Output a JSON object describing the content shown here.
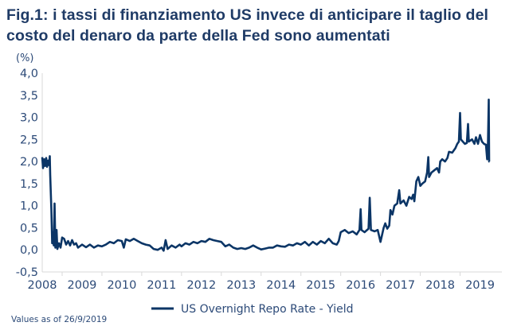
{
  "chart_data": {
    "type": "line",
    "title": "Fig.1: i tassi di finanziamento US invece di anticipare il taglio del costo del denaro da parte della Fed sono aumentati",
    "ylabel": "(%)",
    "xlabel": "",
    "ylim": [
      -0.5,
      4.0
    ],
    "xlim": [
      2008.5,
      2020.05
    ],
    "yticks": [
      "4,0",
      "3,5",
      "3,0",
      "2,5",
      "2,0",
      "1,5",
      "1,0",
      "0,5",
      "0,0",
      "-0,5"
    ],
    "ytick_values": [
      4.0,
      3.5,
      3.0,
      2.5,
      2.0,
      1.5,
      1.0,
      0.5,
      0.0,
      -0.5
    ],
    "xticks": [
      "2008",
      "2009",
      "2010",
      "2011",
      "2012",
      "2013",
      "2014",
      "2015",
      "2016",
      "2017",
      "2018",
      "2019"
    ],
    "grid": false,
    "legend_position": "bottom",
    "color": "#0b3566",
    "series": [
      {
        "name": "US Overnight Repo Rate - Yield",
        "points": [
          [
            2008.5,
            2.1
          ],
          [
            2008.52,
            1.85
          ],
          [
            2008.55,
            2.05
          ],
          [
            2008.57,
            1.9
          ],
          [
            2008.6,
            2.08
          ],
          [
            2008.62,
            1.88
          ],
          [
            2008.65,
            2.02
          ],
          [
            2008.67,
            1.92
          ],
          [
            2008.69,
            2.12
          ],
          [
            2008.7,
            1.7
          ],
          [
            2008.73,
            0.9
          ],
          [
            2008.75,
            0.15
          ],
          [
            2008.77,
            0.4
          ],
          [
            2008.79,
            0.1
          ],
          [
            2008.81,
            1.05
          ],
          [
            2008.83,
            0.05
          ],
          [
            2008.86,
            0.45
          ],
          [
            2008.88,
            0.02
          ],
          [
            2008.92,
            0.15
          ],
          [
            2008.96,
            0.05
          ],
          [
            2009.0,
            0.28
          ],
          [
            2009.05,
            0.25
          ],
          [
            2009.1,
            0.12
          ],
          [
            2009.15,
            0.2
          ],
          [
            2009.2,
            0.1
          ],
          [
            2009.25,
            0.22
          ],
          [
            2009.3,
            0.12
          ],
          [
            2009.35,
            0.15
          ],
          [
            2009.4,
            0.05
          ],
          [
            2009.5,
            0.12
          ],
          [
            2009.6,
            0.06
          ],
          [
            2009.7,
            0.12
          ],
          [
            2009.8,
            0.05
          ],
          [
            2009.9,
            0.1
          ],
          [
            2010.0,
            0.08
          ],
          [
            2010.1,
            0.12
          ],
          [
            2010.2,
            0.18
          ],
          [
            2010.3,
            0.15
          ],
          [
            2010.4,
            0.22
          ],
          [
            2010.5,
            0.2
          ],
          [
            2010.55,
            0.05
          ],
          [
            2010.6,
            0.24
          ],
          [
            2010.7,
            0.2
          ],
          [
            2010.8,
            0.25
          ],
          [
            2010.9,
            0.2
          ],
          [
            2011.0,
            0.15
          ],
          [
            2011.1,
            0.12
          ],
          [
            2011.2,
            0.1
          ],
          [
            2011.3,
            0.02
          ],
          [
            2011.4,
            0.0
          ],
          [
            2011.5,
            0.05
          ],
          [
            2011.55,
            -0.02
          ],
          [
            2011.6,
            0.22
          ],
          [
            2011.65,
            0.02
          ],
          [
            2011.75,
            0.1
          ],
          [
            2011.85,
            0.05
          ],
          [
            2011.95,
            0.12
          ],
          [
            2012.0,
            0.08
          ],
          [
            2012.1,
            0.15
          ],
          [
            2012.2,
            0.12
          ],
          [
            2012.3,
            0.18
          ],
          [
            2012.4,
            0.15
          ],
          [
            2012.5,
            0.2
          ],
          [
            2012.6,
            0.18
          ],
          [
            2012.7,
            0.25
          ],
          [
            2012.8,
            0.22
          ],
          [
            2012.9,
            0.2
          ],
          [
            2013.0,
            0.18
          ],
          [
            2013.1,
            0.08
          ],
          [
            2013.2,
            0.12
          ],
          [
            2013.3,
            0.05
          ],
          [
            2013.4,
            0.02
          ],
          [
            2013.5,
            0.04
          ],
          [
            2013.6,
            0.02
          ],
          [
            2013.7,
            0.05
          ],
          [
            2013.8,
            0.1
          ],
          [
            2013.9,
            0.05
          ],
          [
            2014.0,
            0.01
          ],
          [
            2014.1,
            0.03
          ],
          [
            2014.2,
            0.05
          ],
          [
            2014.3,
            0.05
          ],
          [
            2014.4,
            0.1
          ],
          [
            2014.5,
            0.08
          ],
          [
            2014.6,
            0.07
          ],
          [
            2014.7,
            0.12
          ],
          [
            2014.8,
            0.1
          ],
          [
            2014.9,
            0.15
          ],
          [
            2015.0,
            0.12
          ],
          [
            2015.1,
            0.18
          ],
          [
            2015.2,
            0.1
          ],
          [
            2015.3,
            0.18
          ],
          [
            2015.4,
            0.12
          ],
          [
            2015.5,
            0.2
          ],
          [
            2015.6,
            0.15
          ],
          [
            2015.7,
            0.25
          ],
          [
            2015.8,
            0.15
          ],
          [
            2015.9,
            0.12
          ],
          [
            2015.95,
            0.2
          ],
          [
            2016.0,
            0.4
          ],
          [
            2016.1,
            0.45
          ],
          [
            2016.2,
            0.38
          ],
          [
            2016.3,
            0.42
          ],
          [
            2016.4,
            0.35
          ],
          [
            2016.47,
            0.45
          ],
          [
            2016.5,
            0.92
          ],
          [
            2016.52,
            0.45
          ],
          [
            2016.6,
            0.4
          ],
          [
            2016.7,
            0.48
          ],
          [
            2016.73,
            1.18
          ],
          [
            2016.76,
            0.45
          ],
          [
            2016.85,
            0.42
          ],
          [
            2016.93,
            0.45
          ],
          [
            2017.0,
            0.18
          ],
          [
            2017.03,
            0.3
          ],
          [
            2017.08,
            0.5
          ],
          [
            2017.12,
            0.6
          ],
          [
            2017.17,
            0.48
          ],
          [
            2017.22,
            0.55
          ],
          [
            2017.25,
            0.9
          ],
          [
            2017.3,
            0.8
          ],
          [
            2017.35,
            1.0
          ],
          [
            2017.42,
            1.05
          ],
          [
            2017.47,
            1.35
          ],
          [
            2017.5,
            1.05
          ],
          [
            2017.58,
            1.12
          ],
          [
            2017.65,
            1.0
          ],
          [
            2017.72,
            1.2
          ],
          [
            2017.78,
            1.15
          ],
          [
            2017.82,
            1.25
          ],
          [
            2017.85,
            1.1
          ],
          [
            2017.9,
            1.55
          ],
          [
            2017.95,
            1.65
          ],
          [
            2018.0,
            1.45
          ],
          [
            2018.05,
            1.5
          ],
          [
            2018.12,
            1.55
          ],
          [
            2018.17,
            1.75
          ],
          [
            2018.2,
            2.1
          ],
          [
            2018.22,
            1.65
          ],
          [
            2018.28,
            1.75
          ],
          [
            2018.35,
            1.8
          ],
          [
            2018.42,
            1.85
          ],
          [
            2018.47,
            1.75
          ],
          [
            2018.5,
            2.0
          ],
          [
            2018.55,
            2.05
          ],
          [
            2018.62,
            2.0
          ],
          [
            2018.68,
            2.08
          ],
          [
            2018.72,
            2.22
          ],
          [
            2018.8,
            2.2
          ],
          [
            2018.88,
            2.3
          ],
          [
            2018.93,
            2.4
          ],
          [
            2018.97,
            2.45
          ],
          [
            2019.0,
            3.1
          ],
          [
            2019.02,
            2.5
          ],
          [
            2019.07,
            2.45
          ],
          [
            2019.12,
            2.4
          ],
          [
            2019.17,
            2.42
          ],
          [
            2019.2,
            2.85
          ],
          [
            2019.22,
            2.45
          ],
          [
            2019.3,
            2.5
          ],
          [
            2019.36,
            2.4
          ],
          [
            2019.4,
            2.55
          ],
          [
            2019.45,
            2.4
          ],
          [
            2019.5,
            2.6
          ],
          [
            2019.55,
            2.45
          ],
          [
            2019.6,
            2.4
          ],
          [
            2019.65,
            2.38
          ],
          [
            2019.68,
            2.05
          ],
          [
            2019.7,
            2.4
          ],
          [
            2019.72,
            3.4
          ],
          [
            2019.73,
            2.0
          ],
          [
            2019.74,
            2.0
          ]
        ]
      }
    ],
    "note": "Values as of 26/9/2019"
  }
}
